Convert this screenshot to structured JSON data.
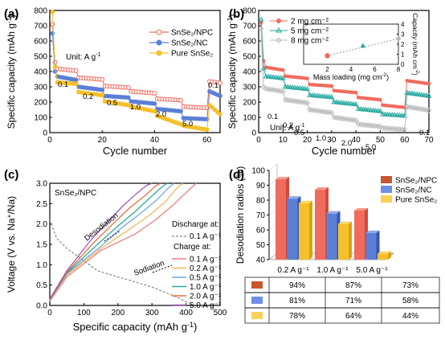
{
  "colors": {
    "npc": "#ef6b5d",
    "nc": "#5b7fd6",
    "pure": "#f5c02a",
    "npc_dark": "#d04a3c",
    "nc_dark": "#3656b0",
    "pure_dark": "#d9a20f",
    "teal": "#22a89c",
    "grey": "#b8b8b8",
    "axis": "#000000",
    "dash": "#888888",
    "bar_top_npc": "#f29a86",
    "bar_top_nc": "#8fa9ea",
    "bar_top_pure": "#f7d86a",
    "table_npc": "#c8562e",
    "table_nc": "#6d8fe6",
    "table_pure": "#f7d15a"
  },
  "chart_data": [
    {
      "panel": "(a)",
      "type": "line",
      "xlabel": "Cycle number",
      "ylabel": "Specific capacity (mAh g",
      "ylabel_sup": "-1",
      "ylabel_end": ")",
      "xlim": [
        0,
        65
      ],
      "ylim": [
        0,
        800
      ],
      "xticks": [
        "0",
        "20",
        "40",
        "60"
      ],
      "yticks": [
        "0",
        "100",
        "200",
        "300",
        "400",
        "500",
        "600",
        "700",
        "800"
      ],
      "unit_text": "Unit:  A g",
      "unit_sup": "-1",
      "rate_labels": [
        "0.1",
        "0.2",
        "0.5",
        "1.0",
        "2.0",
        "5.0",
        "0.1"
      ],
      "legend": [
        "SnSe₂/NPC",
        "SnSe₂/NC",
        "Pure SnSe₂"
      ],
      "series": [
        {
          "name": "SnSe₂/NPC",
          "first": [
            710,
            460
          ],
          "steps": [
            [
              2,
              10,
              420,
              405
            ],
            [
              11,
              20,
              360,
              348
            ],
            [
              21,
              30,
              305,
              295
            ],
            [
              31,
              40,
              270,
              258
            ],
            [
              41,
              50,
              222,
              212
            ],
            [
              51,
              60,
              170,
              162
            ],
            [
              61,
              65,
              335,
              325
            ]
          ]
        },
        {
          "name": "SnSe₂/NC",
          "first": [
            650,
            400
          ],
          "steps": [
            [
              2,
              10,
              370,
              345
            ],
            [
              11,
              20,
              300,
              280
            ],
            [
              21,
              30,
              240,
              230
            ],
            [
              31,
              40,
              205,
              190
            ],
            [
              41,
              50,
              155,
              140
            ],
            [
              51,
              60,
              95,
              88
            ],
            [
              61,
              65,
              270,
              240
            ]
          ]
        },
        {
          "name": "Pure SnSe₂",
          "first": [
            790,
            430
          ],
          "steps": [
            [
              2,
              10,
              330,
              320
            ],
            [
              11,
              20,
              265,
              245
            ],
            [
              21,
              30,
              205,
              180
            ],
            [
              31,
              40,
              170,
              140
            ],
            [
              41,
              50,
              110,
              55
            ],
            [
              51,
              60,
              45,
              20
            ],
            [
              61,
              65,
              180,
              120
            ]
          ]
        }
      ]
    },
    {
      "panel": "(b)",
      "type": "line",
      "xlabel": "Cycle number",
      "ylabel": "Specific capacity (mAh g",
      "ylabel_sup": "-1",
      "ylabel_end": ")",
      "xlim": [
        0,
        70
      ],
      "ylim": [
        0,
        800
      ],
      "xticks": [
        "0",
        "10",
        "20",
        "30",
        "40",
        "50",
        "60",
        "70"
      ],
      "yticks": [
        "0",
        "100",
        "200",
        "300",
        "400",
        "500",
        "600",
        "700",
        "800"
      ],
      "unit_text": "Unit:  A g",
      "unit_sup": "-1",
      "rate_labels": [
        "0.1",
        "0.2",
        "0.5",
        "1.0",
        "2.0",
        "5.0",
        "0.1"
      ],
      "legend": [
        "2 mg cm⁻²",
        "5 mg cm⁻²",
        "8 mg cm⁻²"
      ],
      "series": [
        {
          "name": "2 mg cm⁻²",
          "first": [
            720,
            470
          ],
          "steps": [
            [
              2,
              10,
              430,
              410
            ],
            [
              11,
              20,
              370,
              355
            ],
            [
              21,
              30,
              315,
              305
            ],
            [
              31,
              40,
              275,
              262
            ],
            [
              41,
              50,
              230,
              215
            ],
            [
              51,
              60,
              180,
              165
            ],
            [
              61,
              70,
              340,
              320
            ]
          ]
        },
        {
          "name": "5 mg cm⁻²",
          "first": [
            740,
            420
          ],
          "steps": [
            [
              2,
              10,
              370,
              355
            ],
            [
              11,
              20,
              300,
              285
            ],
            [
              21,
              30,
              245,
              232
            ],
            [
              31,
              40,
              200,
              185
            ],
            [
              41,
              50,
              155,
              140
            ],
            [
              51,
              60,
              120,
              110
            ],
            [
              61,
              70,
              260,
              240
            ]
          ]
        },
        {
          "name": "8 mg cm⁻²",
          "first": [
            680,
            300
          ],
          "steps": [
            [
              2,
              10,
              290,
              270
            ],
            [
              11,
              20,
              215,
              195
            ],
            [
              21,
              30,
              150,
              130
            ],
            [
              31,
              40,
              100,
              80
            ],
            [
              41,
              50,
              55,
              40
            ],
            [
              51,
              60,
              30,
              20
            ],
            [
              61,
              70,
              170,
              145
            ]
          ]
        }
      ],
      "inset": {
        "xlabel": "Mass loading (mg cm",
        "xlabel_sup": "-2",
        "xlabel_end": ")",
        "ylabel": "Capacity (mAh cm",
        "ylabel_sup": "-2",
        "ylabel_end": ")",
        "xlim": [
          0,
          8
        ],
        "ylim": [
          0,
          4
        ],
        "xticks": [
          "2",
          "4",
          "6",
          "8"
        ],
        "yticks": [
          "0",
          "1",
          "2",
          "3",
          "4"
        ],
        "x": [
          2,
          5,
          8
        ],
        "y": [
          0.85,
          1.85,
          2.55
        ]
      }
    },
    {
      "panel": "(c)",
      "type": "line",
      "xlabel": "Specific capacity (mAh g",
      "xlabel_sup": "-1",
      "xlabel_end": ")",
      "ylabel": "Voltage (V vs. Na",
      "ylabel_sup": "+",
      "ylabel_end": "/Na)",
      "xlim": [
        0,
        500
      ],
      "ylim": [
        0,
        3
      ],
      "xticks": [
        "0",
        "100",
        "200",
        "300",
        "400",
        "500"
      ],
      "yticks": [
        "0.0",
        "0.5",
        "1.0",
        "1.5",
        "2.0",
        "2.5",
        "3.0"
      ],
      "label": "SnSe₂/NPC",
      "desodiation_text": "Desodiation",
      "sodiation_text": "Sodiation",
      "discharge_title": "Discharge at:",
      "discharge_label": "0.1 A g⁻¹",
      "charge_title": "Charge at:",
      "discharge": {
        "x": [
          0,
          20,
          50,
          100,
          140,
          200,
          250,
          300,
          340,
          380,
          410
        ],
        "y": [
          2.1,
          1.65,
          1.4,
          1.1,
          0.85,
          0.7,
          0.58,
          0.45,
          0.32,
          0.18,
          0.05
        ]
      },
      "charge": [
        {
          "name": "0.1 A g⁻¹",
          "x": [
            0,
            50,
            150,
            250,
            310,
            360,
            410,
            430
          ],
          "y": [
            0.1,
            0.7,
            1.35,
            1.75,
            2.1,
            2.45,
            2.85,
            3.0
          ]
        },
        {
          "name": "0.2 A g⁻¹",
          "x": [
            0,
            50,
            150,
            230,
            290,
            340,
            375,
            390
          ],
          "y": [
            0.12,
            0.75,
            1.4,
            1.85,
            2.2,
            2.55,
            2.9,
            3.0
          ]
        },
        {
          "name": "0.5 A g⁻¹",
          "x": [
            0,
            50,
            150,
            210,
            265,
            315,
            350,
            365
          ],
          "y": [
            0.13,
            0.78,
            1.45,
            1.9,
            2.25,
            2.6,
            2.9,
            3.0
          ]
        },
        {
          "name": "1.0 A g⁻¹",
          "x": [
            0,
            50,
            140,
            200,
            250,
            295,
            330,
            345
          ],
          "y": [
            0.14,
            0.8,
            1.5,
            1.95,
            2.3,
            2.65,
            2.92,
            3.0
          ]
        },
        {
          "name": "2.0 A g⁻¹",
          "x": [
            0,
            50,
            130,
            185,
            235,
            280,
            310,
            325
          ],
          "y": [
            0.15,
            0.82,
            1.55,
            2.0,
            2.4,
            2.7,
            2.93,
            3.0
          ]
        },
        {
          "name": "5.0 A g⁻¹",
          "x": [
            0,
            50,
            120,
            170,
            215,
            255,
            285,
            300
          ],
          "y": [
            0.16,
            0.85,
            1.6,
            2.05,
            2.45,
            2.75,
            2.95,
            3.0
          ]
        }
      ],
      "charge_colors": [
        "#f08080",
        "#f5b85a",
        "#6ea7e6",
        "#2aa89a",
        "#e57342",
        "#9b59b6"
      ]
    },
    {
      "panel": "(d)",
      "type": "bar",
      "ylabel": "Desodiation radios (%)",
      "ylim": [
        40,
        100
      ],
      "yticks": [
        "40",
        "50",
        "60",
        "70",
        "80",
        "90",
        "100"
      ],
      "categories": [
        "0.2 A g⁻¹",
        "1.0 A g⁻¹",
        "5.0 A g⁻¹"
      ],
      "series": [
        {
          "name": "SnSe₂/NPC",
          "values": [
            94,
            87,
            73
          ]
        },
        {
          "name": "SnSe₂/NC",
          "values": [
            81,
            71,
            58
          ]
        },
        {
          "name": "Pure SnSe₂",
          "values": [
            78,
            64,
            44
          ]
        }
      ],
      "table": [
        [
          "94%",
          "87%",
          "73%"
        ],
        [
          "81%",
          "71%",
          "58%"
        ],
        [
          "78%",
          "64%",
          "44%"
        ]
      ]
    }
  ]
}
